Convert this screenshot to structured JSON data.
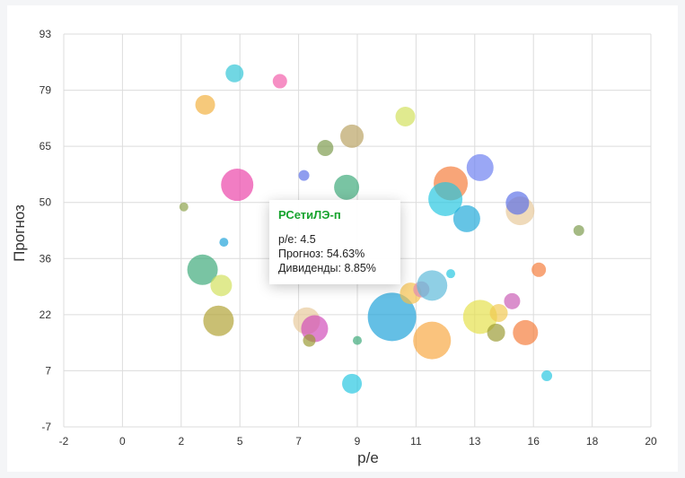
{
  "chart_data": {
    "type": "scatter",
    "variant": "bubble",
    "title": "",
    "xlabel": "p/e",
    "ylabel": "Прогноз",
    "x_ticks": [
      -2,
      0,
      2,
      5,
      7,
      9,
      11,
      13,
      16,
      18,
      20
    ],
    "y_ticks": [
      93,
      79,
      65,
      50,
      36,
      22,
      7,
      -7
    ],
    "xlim": [
      -2,
      20
    ],
    "ylim": [
      -7,
      93
    ],
    "grid": true,
    "size_variable": "Дивиденды",
    "points": [
      {
        "x": 4.4,
        "y": 83,
        "r": 10,
        "color": "#2ec4d6"
      },
      {
        "x": 6.1,
        "y": 81,
        "r": 8,
        "color": "#f25aa8"
      },
      {
        "x": 3.3,
        "y": 75,
        "r": 11,
        "color": "#f2b03c"
      },
      {
        "x": 10.8,
        "y": 72,
        "r": 11,
        "color": "#d2e05a"
      },
      {
        "x": 8.8,
        "y": 67,
        "r": 13,
        "color": "#b8a060"
      },
      {
        "x": 7.8,
        "y": 64,
        "r": 9,
        "color": "#7a9a4a"
      },
      {
        "x": 7.0,
        "y": 57,
        "r": 6,
        "color": "#5a6ee8"
      },
      {
        "x": 4.5,
        "y": 54.63,
        "r": 18,
        "color": "#ea3fa7"
      },
      {
        "x": 8.6,
        "y": 54,
        "r": 14,
        "color": "#3aa878"
      },
      {
        "x": 2.5,
        "y": 49,
        "r": 5,
        "color": "#8aa048"
      },
      {
        "x": 12.5,
        "y": 55,
        "r": 19,
        "color": "#f47a38"
      },
      {
        "x": 12.3,
        "y": 51,
        "r": 19,
        "color": "#22c6e0"
      },
      {
        "x": 13.6,
        "y": 59,
        "r": 15,
        "color": "#6a7ef0"
      },
      {
        "x": 15.1,
        "y": 48,
        "r": 16,
        "color": "#e8c89a"
      },
      {
        "x": 15.0,
        "y": 50,
        "r": 13,
        "color": "#5a6ee8"
      },
      {
        "x": 13.1,
        "y": 46,
        "r": 15,
        "color": "#1ca8d8"
      },
      {
        "x": 17.3,
        "y": 43,
        "r": 6,
        "color": "#7a9a4a"
      },
      {
        "x": 4.0,
        "y": 40,
        "r": 5,
        "color": "#1aa0d8"
      },
      {
        "x": 3.2,
        "y": 33,
        "r": 17,
        "color": "#3aa878"
      },
      {
        "x": 3.9,
        "y": 29,
        "r": 12,
        "color": "#d2e05a"
      },
      {
        "x": 3.8,
        "y": 20,
        "r": 17,
        "color": "#b0a030"
      },
      {
        "x": 7.1,
        "y": 20,
        "r": 15,
        "color": "#e8c89a"
      },
      {
        "x": 7.4,
        "y": 18,
        "r": 15,
        "color": "#d04ab8"
      },
      {
        "x": 7.2,
        "y": 15,
        "r": 7,
        "color": "#9a9a30"
      },
      {
        "x": 9.0,
        "y": 15,
        "r": 5,
        "color": "#3aa878"
      },
      {
        "x": 10.3,
        "y": 21,
        "r": 27,
        "color": "#1aa0d8"
      },
      {
        "x": 11.0,
        "y": 27,
        "r": 12,
        "color": "#f5c04a"
      },
      {
        "x": 11.4,
        "y": 28,
        "r": 9,
        "color": "#e08ab4"
      },
      {
        "x": 11.8,
        "y": 29,
        "r": 17,
        "color": "#5ab8d8"
      },
      {
        "x": 12.5,
        "y": 32,
        "r": 5,
        "color": "#22c6e0"
      },
      {
        "x": 11.8,
        "y": 15,
        "r": 21,
        "color": "#f7a640"
      },
      {
        "x": 13.6,
        "y": 21,
        "r": 19,
        "color": "#e4e048"
      },
      {
        "x": 14.3,
        "y": 22,
        "r": 10,
        "color": "#f2c850"
      },
      {
        "x": 14.8,
        "y": 25,
        "r": 9,
        "color": "#c85ab4"
      },
      {
        "x": 14.2,
        "y": 17,
        "r": 10,
        "color": "#9a9a30"
      },
      {
        "x": 15.3,
        "y": 17,
        "r": 14,
        "color": "#f47a38"
      },
      {
        "x": 15.8,
        "y": 33,
        "r": 8,
        "color": "#f47a38"
      },
      {
        "x": 8.8,
        "y": 4,
        "r": 11,
        "color": "#22c6e0"
      },
      {
        "x": 16.1,
        "y": 6,
        "r": 6,
        "color": "#22c6e0"
      }
    ],
    "tooltip": {
      "title": "РСетиЛЭ-п",
      "lines": [
        "p/e: 4.5",
        "Прогноз: 54.63%",
        "Дивиденды: 8.85%"
      ],
      "title_color": "#17a32e"
    }
  }
}
